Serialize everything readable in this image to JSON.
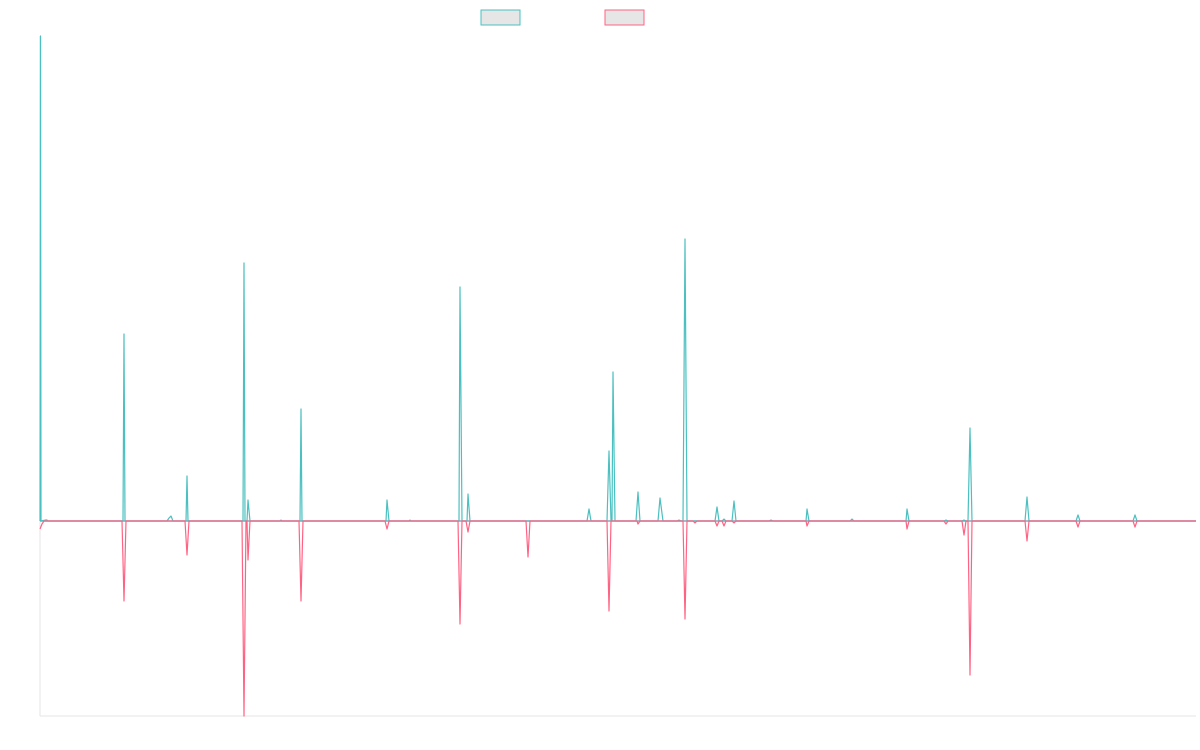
{
  "chart_data": {
    "type": "line",
    "title": "",
    "xlabel": "",
    "ylabel": "",
    "grid": false,
    "legend_position": "top-center",
    "x_range": [
      0,
      1200
    ],
    "ylim": [
      -195,
      485
    ],
    "baseline": 0,
    "series": [
      {
        "color": "#4bc0c0",
        "fill": "#e6e6e6",
        "points": [
          [
            40,
            0
          ],
          [
            40.5,
            485
          ],
          [
            41,
            0
          ],
          [
            46,
            1
          ],
          [
            47,
            1
          ],
          [
            48,
            0
          ],
          [
            123,
            0
          ],
          [
            124,
            187
          ],
          [
            125,
            0
          ],
          [
            167,
            0
          ],
          [
            169,
            3
          ],
          [
            171,
            5
          ],
          [
            173,
            0
          ],
          [
            186,
            0
          ],
          [
            187,
            45
          ],
          [
            188,
            0
          ],
          [
            243,
            0
          ],
          [
            244,
            258
          ],
          [
            245,
            0
          ],
          [
            247,
            0
          ],
          [
            248,
            21
          ],
          [
            250,
            0
          ],
          [
            280,
            0
          ],
          [
            281,
            1
          ],
          [
            282,
            0
          ],
          [
            300,
            0
          ],
          [
            301,
            112
          ],
          [
            302,
            0
          ],
          [
            386,
            0
          ],
          [
            387,
            21
          ],
          [
            389,
            0
          ],
          [
            409,
            0
          ],
          [
            410,
            1
          ],
          [
            411,
            0
          ],
          [
            459,
            0
          ],
          [
            460,
            234
          ],
          [
            462,
            0
          ],
          [
            467,
            0
          ],
          [
            468,
            27
          ],
          [
            470,
            0
          ],
          [
            587,
            0
          ],
          [
            589,
            12
          ],
          [
            591,
            0
          ],
          [
            607,
            0
          ],
          [
            609,
            70
          ],
          [
            611,
            0
          ],
          [
            612,
            0
          ],
          [
            613,
            149
          ],
          [
            615,
            0
          ],
          [
            636,
            0
          ],
          [
            638,
            29
          ],
          [
            640,
            0
          ],
          [
            658,
            0
          ],
          [
            660,
            23
          ],
          [
            663,
            0
          ],
          [
            677,
            0
          ],
          [
            679,
            1
          ],
          [
            681,
            0
          ],
          [
            683,
            0
          ],
          [
            685,
            282
          ],
          [
            687,
            0
          ],
          [
            715,
            0
          ],
          [
            717,
            14
          ],
          [
            719,
            0
          ],
          [
            722,
            0
          ],
          [
            724,
            2
          ],
          [
            726,
            0
          ],
          [
            732,
            0
          ],
          [
            734,
            20
          ],
          [
            736,
            0
          ],
          [
            769,
            0
          ],
          [
            771,
            1
          ],
          [
            773,
            0
          ],
          [
            806,
            0
          ],
          [
            807,
            12
          ],
          [
            809,
            0
          ],
          [
            850,
            0
          ],
          [
            852,
            2
          ],
          [
            854,
            0
          ],
          [
            906,
            0
          ],
          [
            907,
            12
          ],
          [
            909,
            0
          ],
          [
            944,
            0
          ],
          [
            946,
            1
          ],
          [
            948,
            0
          ],
          [
            962,
            0
          ],
          [
            964,
            1
          ],
          [
            966,
            0
          ],
          [
            968,
            0
          ],
          [
            970,
            93
          ],
          [
            972,
            0
          ],
          [
            1025,
            0
          ],
          [
            1027,
            24
          ],
          [
            1029,
            0
          ],
          [
            1076,
            0
          ],
          [
            1078,
            6
          ],
          [
            1080,
            0
          ],
          [
            1133,
            0
          ],
          [
            1135,
            6
          ],
          [
            1137,
            0
          ],
          [
            1196,
            0
          ]
        ]
      },
      {
        "color": "#ff6384",
        "fill": "#e6e6e6",
        "points": [
          [
            40,
            -8
          ],
          [
            42,
            -3
          ],
          [
            44,
            0
          ],
          [
            122,
            0
          ],
          [
            124,
            -80
          ],
          [
            126,
            0
          ],
          [
            185,
            0
          ],
          [
            187,
            -34
          ],
          [
            189,
            0
          ],
          [
            242,
            0
          ],
          [
            244,
            -195
          ],
          [
            246,
            0
          ],
          [
            247,
            0
          ],
          [
            248,
            -39
          ],
          [
            250,
            0
          ],
          [
            299,
            0
          ],
          [
            301,
            -80
          ],
          [
            303,
            0
          ],
          [
            385,
            0
          ],
          [
            387,
            -8
          ],
          [
            389,
            0
          ],
          [
            458,
            0
          ],
          [
            460,
            -103
          ],
          [
            462,
            0
          ],
          [
            466,
            0
          ],
          [
            468,
            -11
          ],
          [
            470,
            0
          ],
          [
            526,
            0
          ],
          [
            528,
            -36
          ],
          [
            530,
            0
          ],
          [
            607,
            0
          ],
          [
            609,
            -90
          ],
          [
            611,
            0
          ],
          [
            637,
            0
          ],
          [
            638,
            -3
          ],
          [
            640,
            0
          ],
          [
            683,
            0
          ],
          [
            685,
            -98
          ],
          [
            687,
            0
          ],
          [
            693,
            0
          ],
          [
            695,
            -2
          ],
          [
            697,
            0
          ],
          [
            715,
            0
          ],
          [
            717,
            -5
          ],
          [
            719,
            0
          ],
          [
            722,
            0
          ],
          [
            724,
            -5
          ],
          [
            726,
            0
          ],
          [
            732,
            0
          ],
          [
            734,
            -2
          ],
          [
            736,
            0
          ],
          [
            806,
            0
          ],
          [
            807,
            -5
          ],
          [
            809,
            0
          ],
          [
            906,
            0
          ],
          [
            907,
            -8
          ],
          [
            909,
            0
          ],
          [
            944,
            0
          ],
          [
            946,
            -3
          ],
          [
            948,
            0
          ],
          [
            962,
            0
          ],
          [
            964,
            -14
          ],
          [
            966,
            0
          ],
          [
            968,
            0
          ],
          [
            970,
            -154
          ],
          [
            972,
            0
          ],
          [
            1025,
            0
          ],
          [
            1027,
            -20
          ],
          [
            1029,
            0
          ],
          [
            1076,
            0
          ],
          [
            1078,
            -6
          ],
          [
            1080,
            0
          ],
          [
            1133,
            0
          ],
          [
            1135,
            -6
          ],
          [
            1137,
            0
          ],
          [
            1196,
            0
          ]
        ]
      }
    ]
  }
}
